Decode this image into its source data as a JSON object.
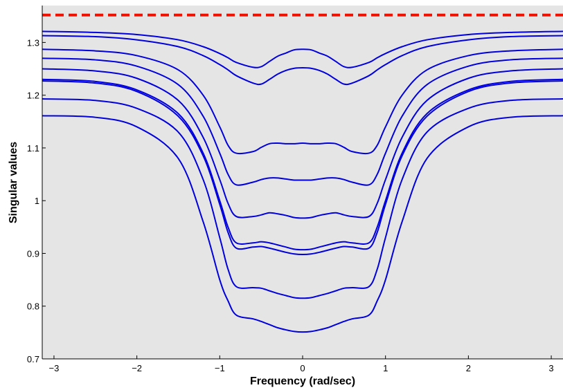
{
  "chart_data": {
    "type": "line",
    "title": "",
    "xlabel": "Frequency (rad/sec)",
    "ylabel": "Singular values",
    "xlim": [
      -3.1416,
      3.1416
    ],
    "ylim": [
      0.7,
      1.37
    ],
    "xticks": [
      -3,
      -2,
      -1,
      0,
      1,
      2,
      3
    ],
    "xtick_labels": [
      "−3",
      "−2",
      "−1",
      "0",
      "1",
      "2",
      "3"
    ],
    "yticks": [
      0.7,
      0.8,
      0.9,
      1.0,
      1.1,
      1.2,
      1.3
    ],
    "ytick_labels": [
      "0.7",
      "0.8",
      "0.9",
      "1",
      "1.1",
      "1.2",
      "1.3"
    ],
    "grid": false,
    "legend": "none",
    "background_color": "#e5e5e5",
    "series_color": "#0000dd",
    "bound_color": "#ee1100",
    "bound": {
      "style": "dashed",
      "y": 1.352
    },
    "x": [
      -3.1416,
      -2.5,
      -2.0,
      -1.5,
      -1.2,
      -1.0,
      -0.9,
      -0.8,
      -0.6,
      -0.5,
      -0.4,
      -0.3,
      -0.2,
      -0.1,
      0.0,
      0.1,
      0.2,
      0.3,
      0.4,
      0.5,
      0.6,
      0.8,
      0.9,
      1.0,
      1.2,
      1.5,
      2.0,
      2.5,
      3.1416
    ],
    "series": [
      {
        "values": [
          1.321,
          1.319,
          1.315,
          1.305,
          1.292,
          1.279,
          1.271,
          1.262,
          1.253,
          1.254,
          1.264,
          1.274,
          1.28,
          1.286,
          1.287,
          1.286,
          1.28,
          1.274,
          1.264,
          1.254,
          1.253,
          1.262,
          1.271,
          1.279,
          1.292,
          1.305,
          1.315,
          1.319,
          1.321
        ]
      },
      {
        "values": [
          1.313,
          1.311,
          1.305,
          1.292,
          1.275,
          1.258,
          1.248,
          1.237,
          1.223,
          1.221,
          1.23,
          1.24,
          1.247,
          1.251,
          1.252,
          1.251,
          1.247,
          1.24,
          1.23,
          1.221,
          1.223,
          1.237,
          1.248,
          1.258,
          1.275,
          1.292,
          1.305,
          1.311,
          1.313
        ]
      },
      {
        "values": [
          1.287,
          1.284,
          1.275,
          1.248,
          1.2,
          1.14,
          1.105,
          1.09,
          1.093,
          1.101,
          1.108,
          1.109,
          1.108,
          1.108,
          1.109,
          1.108,
          1.108,
          1.109,
          1.108,
          1.101,
          1.093,
          1.09,
          1.105,
          1.14,
          1.2,
          1.248,
          1.275,
          1.284,
          1.287
        ]
      },
      {
        "values": [
          1.27,
          1.267,
          1.255,
          1.22,
          1.16,
          1.09,
          1.05,
          1.03,
          1.035,
          1.04,
          1.043,
          1.043,
          1.041,
          1.039,
          1.039,
          1.039,
          1.041,
          1.043,
          1.043,
          1.04,
          1.035,
          1.03,
          1.05,
          1.09,
          1.16,
          1.22,
          1.255,
          1.267,
          1.27
        ]
      },
      {
        "values": [
          1.25,
          1.246,
          1.232,
          1.19,
          1.12,
          1.04,
          0.995,
          0.97,
          0.97,
          0.973,
          0.977,
          0.975,
          0.972,
          0.968,
          0.967,
          0.968,
          0.972,
          0.975,
          0.977,
          0.973,
          0.97,
          0.97,
          0.995,
          1.04,
          1.12,
          1.19,
          1.232,
          1.246,
          1.25
        ]
      },
      {
        "values": [
          1.23,
          1.226,
          1.21,
          1.165,
          1.09,
          1.0,
          0.95,
          0.92,
          0.92,
          0.922,
          0.92,
          0.916,
          0.912,
          0.908,
          0.907,
          0.908,
          0.912,
          0.916,
          0.92,
          0.922,
          0.92,
          0.92,
          0.95,
          1.0,
          1.09,
          1.165,
          1.21,
          1.226,
          1.23
        ]
      },
      {
        "values": [
          1.227,
          1.223,
          1.207,
          1.16,
          1.085,
          0.993,
          0.94,
          0.91,
          0.912,
          0.913,
          0.91,
          0.906,
          0.902,
          0.899,
          0.898,
          0.899,
          0.902,
          0.906,
          0.91,
          0.913,
          0.912,
          0.91,
          0.94,
          0.993,
          1.085,
          1.16,
          1.207,
          1.223,
          1.227
        ]
      },
      {
        "values": [
          1.193,
          1.19,
          1.175,
          1.13,
          1.04,
          0.93,
          0.87,
          0.837,
          0.835,
          0.834,
          0.829,
          0.824,
          0.82,
          0.816,
          0.815,
          0.816,
          0.82,
          0.824,
          0.829,
          0.834,
          0.835,
          0.837,
          0.87,
          0.93,
          1.04,
          1.13,
          1.175,
          1.19,
          1.193
        ]
      },
      {
        "values": [
          1.161,
          1.158,
          1.14,
          1.08,
          0.96,
          0.85,
          0.81,
          0.783,
          0.776,
          0.771,
          0.765,
          0.759,
          0.755,
          0.752,
          0.751,
          0.752,
          0.755,
          0.759,
          0.765,
          0.771,
          0.776,
          0.783,
          0.81,
          0.85,
          0.96,
          1.08,
          1.14,
          1.158,
          1.161
        ]
      }
    ]
  }
}
